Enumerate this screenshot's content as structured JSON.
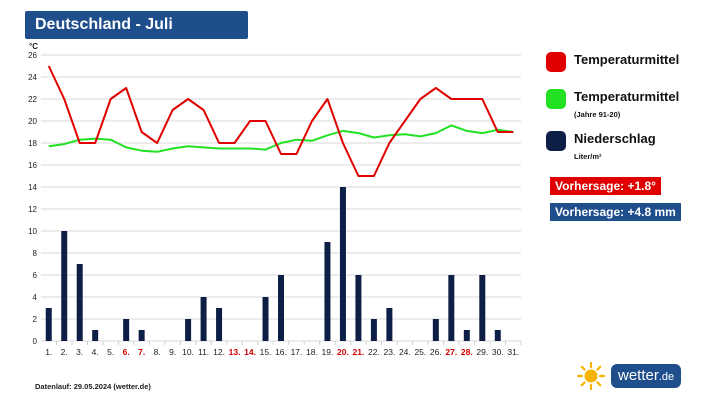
{
  "title": "Deutschland - Juli",
  "unit_label": "°C",
  "legend": {
    "temp": "Temperaturmittel",
    "norm": "Temperaturmittel",
    "norm_sub": "(Jahre 91-20)",
    "precip": "Niederschlag",
    "precip_sub": "Liter/m²"
  },
  "forecast": {
    "temp": "Vorhersage: +1.8°",
    "precip": "Vorhersage: +4.8 mm"
  },
  "footer": "Datenlauf: 29.05.2024 (wetter.de)",
  "logo": {
    "name": "wetter",
    "tld": ".de"
  },
  "colors": {
    "temp": "#e00000",
    "norm": "#22e022",
    "precip": "#0e1f47",
    "title_bg": "#1f4e8c",
    "weekend": "#d00000",
    "grid": "#d8d8d8"
  },
  "chart_data": {
    "type": "bar",
    "ylim": [
      0,
      26
    ],
    "yticks": [
      0,
      2,
      4,
      6,
      8,
      10,
      12,
      14,
      16,
      18,
      20,
      22,
      24,
      26
    ],
    "categories": [
      "1.",
      "2.",
      "3.",
      "4.",
      "5.",
      "6.",
      "7.",
      "8.",
      "9.",
      "10.",
      "11.",
      "12.",
      "13.",
      "14.",
      "15.",
      "16.",
      "17.",
      "18.",
      "19.",
      "20.",
      "21.",
      "22.",
      "23.",
      "24.",
      "25.",
      "26.",
      "27.",
      "28.",
      "29.",
      "30.",
      "31."
    ],
    "weekend_days": [
      6,
      7,
      13,
      14,
      20,
      21,
      27,
      28
    ],
    "series": [
      {
        "name": "Niederschlag",
        "kind": "bar",
        "values": [
          3,
          10,
          7,
          1,
          0,
          2,
          1,
          0,
          0,
          2,
          4,
          3,
          0,
          0,
          4,
          6,
          0,
          0,
          9,
          14,
          6,
          2,
          3,
          0,
          0,
          2,
          6,
          1,
          6,
          1,
          0
        ]
      },
      {
        "name": "Temperaturmittel",
        "kind": "line",
        "values": [
          25,
          22,
          18,
          18,
          22,
          23,
          19,
          18,
          21,
          22,
          21,
          18,
          18,
          20,
          20,
          17,
          17,
          20,
          22,
          18,
          15,
          15,
          18,
          20,
          22,
          23,
          22,
          22,
          22,
          19,
          19
        ]
      },
      {
        "name": "Temperaturmittel (Jahre 91-20)",
        "kind": "line",
        "values": [
          17.7,
          17.9,
          18.3,
          18.4,
          18.3,
          17.6,
          17.3,
          17.2,
          17.5,
          17.7,
          17.6,
          17.5,
          17.5,
          17.5,
          17.4,
          18.0,
          18.3,
          18.2,
          18.7,
          19.1,
          18.9,
          18.5,
          18.7,
          18.8,
          18.6,
          18.9,
          19.6,
          19.1,
          18.9,
          19.2,
          19.0
        ]
      }
    ]
  }
}
